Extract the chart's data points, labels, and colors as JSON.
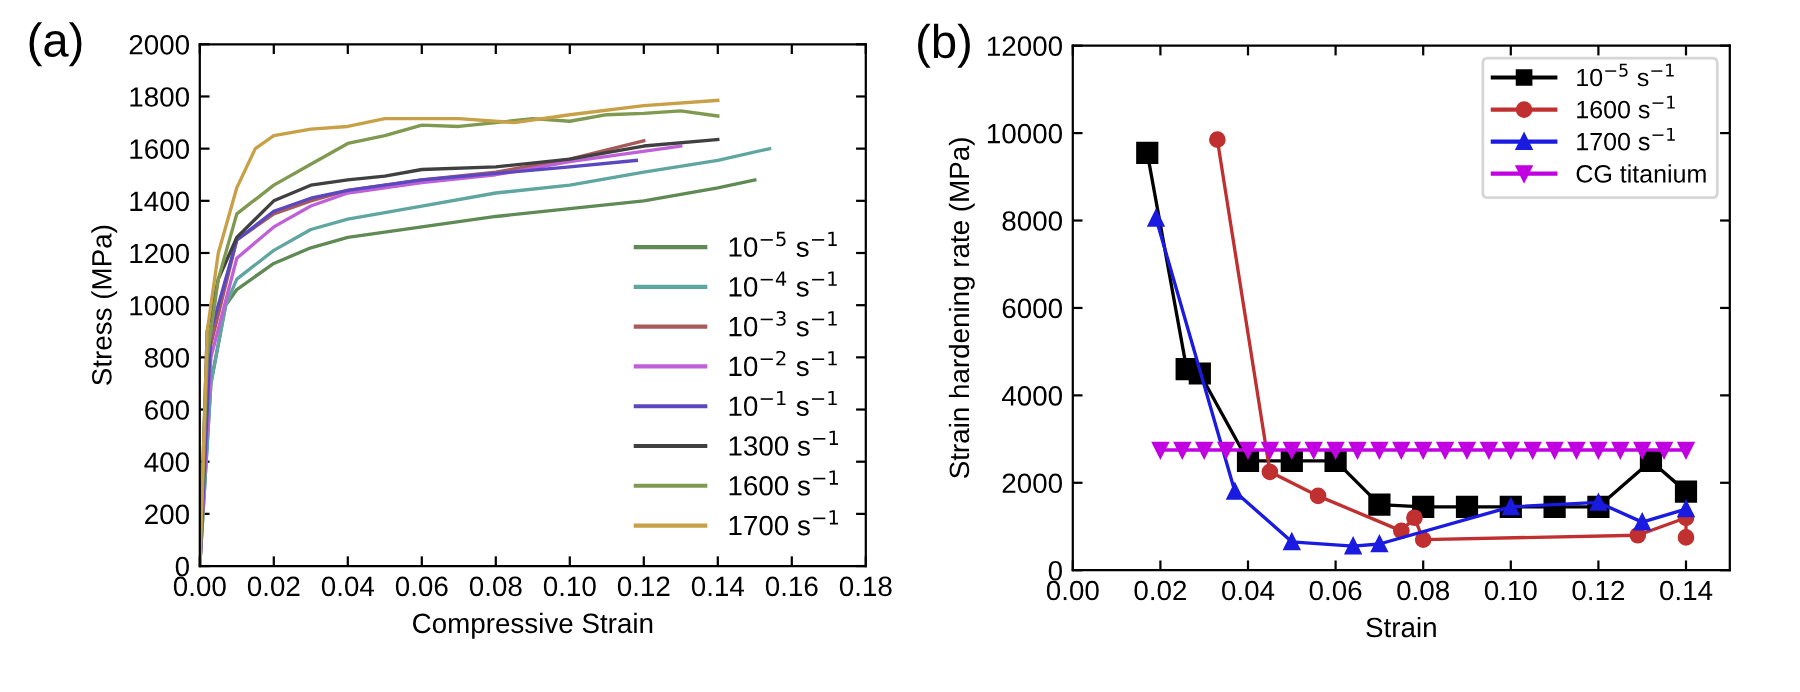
{
  "chart_data": [
    {
      "type": "line",
      "title": "(a)",
      "xlabel": "Compressive Strain",
      "ylabel": "Stress (MPa)",
      "xlim": [
        0,
        0.18
      ],
      "xticks": [
        {
          "value": 0,
          "label": "0.00"
        },
        {
          "value": 0.02,
          "label": "0.02"
        },
        {
          "value": 0.04,
          "label": "0.04"
        },
        {
          "value": 0.06,
          "label": "0.06"
        },
        {
          "value": 0.08,
          "label": "0.08"
        },
        {
          "value": 0.1,
          "label": "0.10"
        },
        {
          "value": 0.12,
          "label": "0.12"
        },
        {
          "value": 0.14,
          "label": "0.14"
        },
        {
          "value": 0.16,
          "label": "0.16"
        },
        {
          "value": 0.18,
          "label": "0.18"
        }
      ],
      "ylim": [
        0,
        2000
      ],
      "yticks": [
        0,
        200,
        400,
        600,
        800,
        1000,
        1200,
        1400,
        1600,
        1800,
        2000
      ],
      "legend": "bottom right",
      "marker": "none",
      "line_style": "solid",
      "grid": false,
      "series": [
        {
          "name": "10$^{−5}$ s$^{−1}$",
          "color": "#5f8a55",
          "x": [
            0,
            0.003,
            0.007,
            0.01,
            0.02,
            0.03,
            0.04,
            0.06,
            0.08,
            0.1,
            0.12,
            0.14,
            0.15
          ],
          "values": [
            0,
            700,
            1000,
            1060,
            1160,
            1220,
            1260,
            1300,
            1340,
            1370,
            1400,
            1450,
            1480
          ]
        },
        {
          "name": "10$^{−4}$ s$^{−1}$",
          "color": "#5fa5a0",
          "x": [
            0,
            0.003,
            0.007,
            0.01,
            0.02,
            0.03,
            0.04,
            0.06,
            0.08,
            0.1,
            0.12,
            0.14,
            0.154
          ],
          "values": [
            0,
            700,
            1000,
            1100,
            1210,
            1290,
            1330,
            1380,
            1430,
            1460,
            1510,
            1555,
            1600
          ]
        },
        {
          "name": "10$^{−3}$ s$^{−1}$",
          "color": "#a85a5a",
          "x": [
            0,
            0.003,
            0.01,
            0.02,
            0.03,
            0.04,
            0.06,
            0.08,
            0.1,
            0.12
          ],
          "values": [
            0,
            850,
            1250,
            1350,
            1400,
            1440,
            1480,
            1510,
            1560,
            1630
          ]
        },
        {
          "name": "10$^{−2}$ s$^{−1}$",
          "color": "#c060d8",
          "x": [
            0,
            0.003,
            0.01,
            0.02,
            0.03,
            0.04,
            0.06,
            0.08,
            0.1,
            0.13
          ],
          "values": [
            0,
            800,
            1180,
            1300,
            1380,
            1430,
            1470,
            1500,
            1550,
            1610
          ]
        },
        {
          "name": "10$^{−1}$ s$^{−1}$",
          "color": "#5a48c0",
          "x": [
            0,
            0.003,
            0.01,
            0.02,
            0.03,
            0.04,
            0.06,
            0.08,
            0.1,
            0.118
          ],
          "values": [
            0,
            900,
            1250,
            1360,
            1410,
            1440,
            1480,
            1505,
            1530,
            1555
          ]
        },
        {
          "name": "1300 s$^{−1}$",
          "color": "#404040",
          "x": [
            0,
            0.002,
            0.005,
            0.01,
            0.02,
            0.03,
            0.04,
            0.05,
            0.06,
            0.08,
            0.1,
            0.12,
            0.14
          ],
          "values": [
            0,
            900,
            1100,
            1260,
            1400,
            1460,
            1480,
            1495,
            1520,
            1530,
            1560,
            1610,
            1635
          ]
        },
        {
          "name": "1600 s$^{−1}$",
          "color": "#7f9a50",
          "x": [
            0,
            0.002,
            0.005,
            0.01,
            0.02,
            0.03,
            0.04,
            0.05,
            0.06,
            0.07,
            0.08,
            0.09,
            0.1,
            0.11,
            0.12,
            0.13,
            0.14
          ],
          "values": [
            0,
            800,
            1100,
            1350,
            1460,
            1540,
            1620,
            1650,
            1690,
            1685,
            1700,
            1715,
            1705,
            1730,
            1735,
            1745,
            1725
          ]
        },
        {
          "name": "1700 s$^{−1}$",
          "color": "#c8a048",
          "x": [
            0,
            0.002,
            0.005,
            0.01,
            0.015,
            0.02,
            0.03,
            0.04,
            0.05,
            0.07,
            0.085,
            0.1,
            0.12,
            0.14
          ],
          "values": [
            0,
            900,
            1200,
            1450,
            1600,
            1650,
            1675,
            1685,
            1715,
            1715,
            1700,
            1730,
            1765,
            1785
          ]
        }
      ]
    },
    {
      "type": "line",
      "title": "(b)",
      "xlabel": "Strain",
      "ylabel": "Strain hardening rate (MPa)",
      "xlim": [
        0,
        0.15
      ],
      "xticks": [
        {
          "value": 0,
          "label": "0.00"
        },
        {
          "value": 0.02,
          "label": "0.02"
        },
        {
          "value": 0.04,
          "label": "0.04"
        },
        {
          "value": 0.06,
          "label": "0.06"
        },
        {
          "value": 0.08,
          "label": "0.08"
        },
        {
          "value": 0.1,
          "label": "0.10"
        },
        {
          "value": 0.12,
          "label": "0.12"
        },
        {
          "value": 0.14,
          "label": "0.14"
        }
      ],
      "ylim": [
        0,
        12000
      ],
      "yticks": [
        0,
        2000,
        4000,
        6000,
        8000,
        10000,
        12000
      ],
      "legend": "top right",
      "line_style": "solid",
      "grid": false,
      "series": [
        {
          "name": "10$^{−5}$ s$^{−1}$",
          "color": "#000000",
          "marker": "square",
          "x": [
            0.017,
            0.026,
            0.029,
            0.04,
            0.05,
            0.06,
            0.07,
            0.08,
            0.09,
            0.1,
            0.11,
            0.12,
            0.132,
            0.14
          ],
          "values": [
            9550,
            4600,
            4500,
            2500,
            2500,
            2500,
            1500,
            1450,
            1450,
            1450,
            1450,
            1450,
            2500,
            1800
          ]
        },
        {
          "name": "1600 s$^{−1}$",
          "color": "#c03030",
          "marker": "circle",
          "x": [
            0.033,
            0.045,
            0.056,
            0.075,
            0.078,
            0.08,
            0.129,
            0.14,
            0.14
          ],
          "values": [
            9850,
            2250,
            1700,
            900,
            1200,
            700,
            800,
            1200,
            750
          ]
        },
        {
          "name": "1700 s$^{−1}$",
          "color": "#1a1ae0",
          "marker": "triangle",
          "x": [
            0.019,
            0.037,
            0.05,
            0.064,
            0.07,
            0.1,
            0.12,
            0.13,
            0.14
          ],
          "values": [
            8050,
            1800,
            650,
            550,
            600,
            1450,
            1550,
            1100,
            1400
          ]
        },
        {
          "name": "CG titanium",
          "color": "#c000e0",
          "marker": "triangle_down",
          "x": [
            0.02,
            0.025,
            0.03,
            0.035,
            0.04,
            0.045,
            0.05,
            0.055,
            0.06,
            0.065,
            0.07,
            0.075,
            0.08,
            0.085,
            0.09,
            0.095,
            0.1,
            0.105,
            0.11,
            0.115,
            0.12,
            0.125,
            0.13,
            0.135,
            0.14
          ],
          "values": [
            2750,
            2750,
            2750,
            2750,
            2750,
            2750,
            2750,
            2750,
            2750,
            2750,
            2750,
            2750,
            2750,
            2750,
            2750,
            2750,
            2750,
            2750,
            2750,
            2750,
            2750,
            2750,
            2750,
            2750,
            2750
          ]
        }
      ]
    }
  ]
}
